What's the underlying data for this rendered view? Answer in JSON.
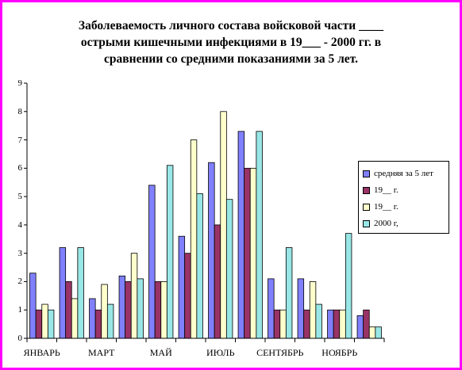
{
  "chart_data": {
    "type": "bar",
    "title_lines": [
      "Заболеваемость личного состава войсковой части ____",
      "острыми кишечными инфекциями в 19___ - 2000 гг. в",
      "сравнении со средними показаниями за 5 лет."
    ],
    "x_tick_labels": [
      "ЯНВАРЬ",
      "МАРТ",
      "МАЙ",
      "ИЮЛЬ",
      "СЕНТЯБРЬ",
      "НОЯБРЬ"
    ],
    "y_tick_labels": [
      "0",
      "1",
      "2",
      "3",
      "4",
      "5",
      "6",
      "7",
      "8",
      "9"
    ],
    "ylim": [
      0,
      9
    ],
    "grid": false,
    "legend_position": "right",
    "series": [
      {
        "name": "средняя за 5 лет",
        "color": "#8080ff",
        "values": [
          2.3,
          3.2,
          1.4,
          2.2,
          5.4,
          3.6,
          6.2,
          7.3,
          2.1,
          2.1,
          1.0,
          0.8
        ]
      },
      {
        "name": "19__ г.",
        "color": "#993366",
        "values": [
          1.0,
          2.0,
          1.0,
          2.0,
          2.0,
          3.0,
          4.0,
          6.0,
          1.0,
          1.0,
          1.0,
          1.0
        ]
      },
      {
        "name": "19__ г.",
        "color": "#ffffcc",
        "values": [
          1.2,
          1.4,
          1.9,
          3.0,
          2.0,
          7.0,
          8.0,
          6.0,
          1.0,
          2.0,
          1.0,
          0.4
        ]
      },
      {
        "name": "2000 г,",
        "color": "#99e6e6",
        "values": [
          1.0,
          3.2,
          1.2,
          2.1,
          6.1,
          5.1,
          4.9,
          7.3,
          3.2,
          1.2,
          3.7,
          0.4
        ]
      }
    ]
  }
}
